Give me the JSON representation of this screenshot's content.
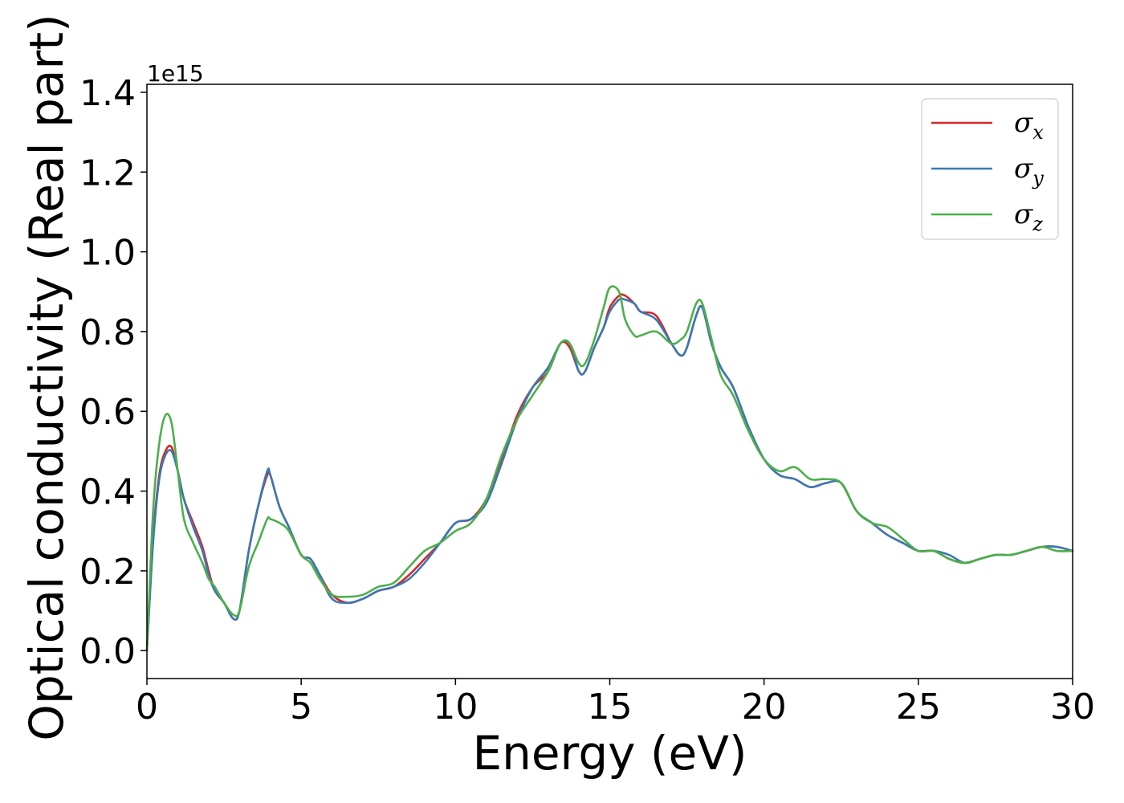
{
  "chart_data": {
    "type": "line",
    "xlabel": "Energy (eV)",
    "ylabel": "Optical conductivity (Real part)",
    "y_offset_label": "1e15",
    "xlim": [
      0,
      30
    ],
    "ylim": [
      -0.07,
      1.42
    ],
    "x_ticks": [
      0,
      5,
      10,
      15,
      20,
      25,
      30
    ],
    "x_tick_labels": [
      "0",
      "5",
      "10",
      "15",
      "20",
      "25",
      "30"
    ],
    "y_ticks": [
      0.0,
      0.2,
      0.4,
      0.6,
      0.8,
      1.0,
      1.2,
      1.4
    ],
    "y_tick_labels": [
      "0.0",
      "0.2",
      "0.4",
      "0.6",
      "0.8",
      "1.0",
      "1.2",
      "1.4"
    ],
    "grid": false,
    "legend_position": "top-right",
    "series": [
      {
        "name": "σ_x",
        "legend_base": "σ",
        "legend_sub": "x",
        "color": "#d62728",
        "x": [
          0,
          0.2,
          0.4,
          0.6,
          0.8,
          1.0,
          1.2,
          1.5,
          1.8,
          2.0,
          2.2,
          2.5,
          2.8,
          3.0,
          3.3,
          3.6,
          3.9,
          4.0,
          4.3,
          4.6,
          5.0,
          5.3,
          5.6,
          6.0,
          6.5,
          7.0,
          7.5,
          8.0,
          8.5,
          9.0,
          9.5,
          10.0,
          10.5,
          11.0,
          11.5,
          12.0,
          12.5,
          13.0,
          13.4,
          13.7,
          14.0,
          14.2,
          14.5,
          14.8,
          15.0,
          15.3,
          15.5,
          15.8,
          16.0,
          16.5,
          17.0,
          17.3,
          17.5,
          17.8,
          18.0,
          18.3,
          18.6,
          19.0,
          19.5,
          20.0,
          20.5,
          21.0,
          21.5,
          22.0,
          22.5,
          23.0,
          23.5,
          24.0,
          24.5,
          25.0,
          25.5,
          26.0,
          26.5,
          27.0,
          27.5,
          28.0,
          28.5,
          29.0,
          29.5,
          30.0
        ],
        "y": [
          0.0,
          0.28,
          0.44,
          0.5,
          0.51,
          0.45,
          0.38,
          0.32,
          0.26,
          0.2,
          0.15,
          0.12,
          0.08,
          0.1,
          0.25,
          0.36,
          0.44,
          0.44,
          0.36,
          0.31,
          0.24,
          0.23,
          0.19,
          0.14,
          0.12,
          0.13,
          0.15,
          0.16,
          0.19,
          0.23,
          0.27,
          0.32,
          0.33,
          0.38,
          0.48,
          0.59,
          0.66,
          0.7,
          0.77,
          0.76,
          0.7,
          0.7,
          0.76,
          0.81,
          0.86,
          0.89,
          0.89,
          0.87,
          0.85,
          0.84,
          0.77,
          0.74,
          0.76,
          0.84,
          0.86,
          0.77,
          0.71,
          0.66,
          0.56,
          0.48,
          0.44,
          0.43,
          0.41,
          0.42,
          0.42,
          0.35,
          0.32,
          0.29,
          0.27,
          0.25,
          0.25,
          0.23,
          0.22,
          0.23,
          0.24,
          0.24,
          0.25,
          0.26,
          0.26,
          0.25
        ]
      },
      {
        "name": "σ_y",
        "legend_base": "σ",
        "legend_sub": "y",
        "color": "#3a78b5",
        "x": [
          0,
          0.2,
          0.4,
          0.6,
          0.8,
          1.0,
          1.2,
          1.5,
          1.8,
          2.0,
          2.2,
          2.5,
          2.8,
          3.0,
          3.3,
          3.6,
          3.9,
          4.0,
          4.3,
          4.6,
          5.0,
          5.3,
          5.6,
          6.0,
          6.5,
          7.0,
          7.5,
          8.0,
          8.5,
          9.0,
          9.5,
          10.0,
          10.5,
          11.0,
          11.5,
          12.0,
          12.5,
          13.0,
          13.4,
          13.7,
          14.0,
          14.2,
          14.5,
          14.8,
          15.0,
          15.3,
          15.5,
          15.8,
          16.0,
          16.5,
          17.0,
          17.3,
          17.5,
          17.8,
          18.0,
          18.3,
          18.6,
          19.0,
          19.5,
          20.0,
          20.5,
          21.0,
          21.5,
          22.0,
          22.5,
          23.0,
          23.5,
          24.0,
          24.5,
          25.0,
          25.5,
          26.0,
          26.5,
          27.0,
          27.5,
          28.0,
          28.5,
          29.0,
          29.5,
          30.0
        ],
        "y": [
          0.0,
          0.27,
          0.43,
          0.49,
          0.5,
          0.45,
          0.38,
          0.31,
          0.25,
          0.19,
          0.15,
          0.12,
          0.08,
          0.1,
          0.25,
          0.36,
          0.45,
          0.44,
          0.36,
          0.31,
          0.24,
          0.23,
          0.19,
          0.13,
          0.12,
          0.13,
          0.15,
          0.16,
          0.18,
          0.22,
          0.27,
          0.32,
          0.33,
          0.37,
          0.47,
          0.58,
          0.66,
          0.71,
          0.77,
          0.77,
          0.7,
          0.7,
          0.76,
          0.81,
          0.85,
          0.88,
          0.88,
          0.87,
          0.85,
          0.83,
          0.77,
          0.74,
          0.76,
          0.84,
          0.86,
          0.77,
          0.71,
          0.66,
          0.56,
          0.48,
          0.44,
          0.43,
          0.41,
          0.42,
          0.42,
          0.35,
          0.32,
          0.29,
          0.27,
          0.25,
          0.25,
          0.24,
          0.22,
          0.23,
          0.24,
          0.24,
          0.25,
          0.26,
          0.26,
          0.25
        ]
      },
      {
        "name": "σ_z",
        "legend_base": "σ",
        "legend_sub": "z",
        "color": "#4daf4a",
        "x": [
          0,
          0.2,
          0.4,
          0.6,
          0.8,
          1.0,
          1.2,
          1.5,
          1.8,
          2.0,
          2.2,
          2.5,
          2.8,
          3.0,
          3.3,
          3.6,
          3.9,
          4.0,
          4.3,
          4.6,
          5.0,
          5.3,
          5.6,
          6.0,
          6.5,
          7.0,
          7.5,
          8.0,
          8.5,
          9.0,
          9.5,
          10.0,
          10.5,
          11.0,
          11.5,
          12.0,
          12.5,
          13.0,
          13.4,
          13.7,
          14.0,
          14.2,
          14.5,
          14.8,
          15.0,
          15.3,
          15.5,
          15.8,
          16.0,
          16.5,
          17.0,
          17.3,
          17.5,
          17.8,
          18.0,
          18.3,
          18.6,
          19.0,
          19.5,
          20.0,
          20.5,
          21.0,
          21.5,
          22.0,
          22.5,
          23.0,
          23.5,
          24.0,
          24.5,
          25.0,
          25.5,
          26.0,
          26.5,
          27.0,
          27.5,
          28.0,
          28.5,
          29.0,
          29.5,
          30.0
        ],
        "y": [
          0.0,
          0.35,
          0.52,
          0.59,
          0.57,
          0.45,
          0.33,
          0.27,
          0.22,
          0.18,
          0.16,
          0.12,
          0.09,
          0.1,
          0.21,
          0.27,
          0.33,
          0.33,
          0.32,
          0.3,
          0.24,
          0.22,
          0.18,
          0.14,
          0.135,
          0.14,
          0.16,
          0.17,
          0.21,
          0.25,
          0.27,
          0.3,
          0.32,
          0.38,
          0.49,
          0.58,
          0.64,
          0.7,
          0.77,
          0.77,
          0.72,
          0.72,
          0.78,
          0.86,
          0.91,
          0.9,
          0.83,
          0.79,
          0.79,
          0.8,
          0.77,
          0.78,
          0.8,
          0.87,
          0.87,
          0.78,
          0.69,
          0.64,
          0.55,
          0.48,
          0.45,
          0.46,
          0.43,
          0.43,
          0.42,
          0.35,
          0.32,
          0.31,
          0.28,
          0.25,
          0.25,
          0.23,
          0.22,
          0.23,
          0.24,
          0.24,
          0.25,
          0.26,
          0.25,
          0.25
        ]
      }
    ]
  }
}
